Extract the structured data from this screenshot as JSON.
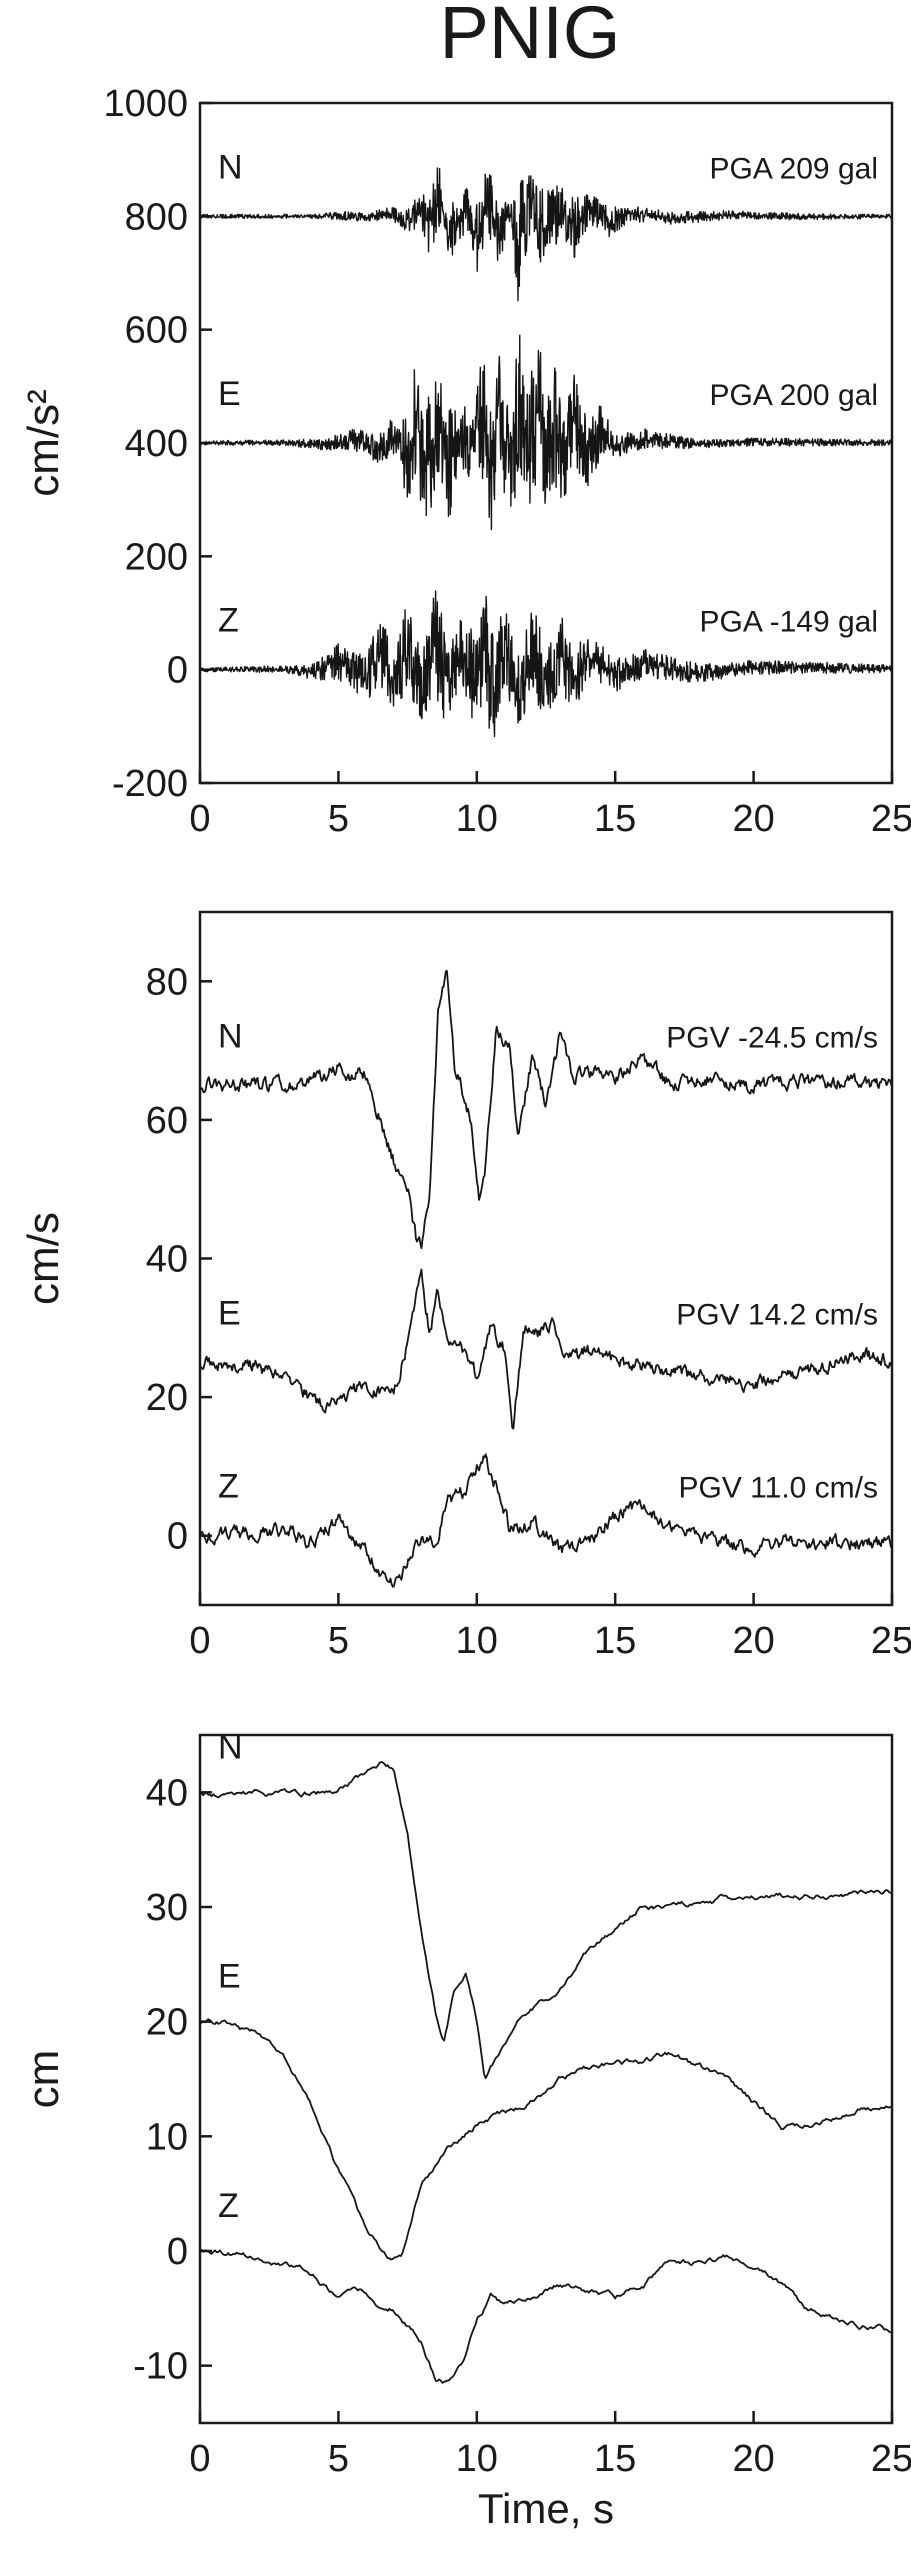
{
  "title": "PNIG",
  "chart_data": [
    {
      "type": "line",
      "ylabel": "cm/s²",
      "ylim": [
        -200,
        1000
      ],
      "yticks": [
        1000,
        800,
        600,
        400,
        200,
        0,
        -200
      ],
      "xlim": [
        0,
        25
      ],
      "xticks": [
        0,
        5,
        10,
        15,
        20,
        25
      ],
      "series": [
        {
          "name": "N",
          "annotation": "PGA 209 gal",
          "baseline": 800,
          "x": [
            0,
            4,
            5,
            6,
            6.8,
            7.5,
            8,
            8.3,
            8.6,
            8.8,
            9,
            9.3,
            9.7,
            10,
            10.4,
            10.8,
            11.2,
            11.5,
            12,
            12.5,
            13,
            13.5,
            14,
            14.8,
            15.5,
            17,
            19,
            22,
            25
          ],
          "y": [
            800,
            800,
            805,
            795,
            812,
            775,
            840,
            740,
            905,
            810,
            690,
            760,
            850,
            700,
            880,
            720,
            815,
            660,
            875,
            700,
            860,
            735,
            835,
            770,
            815,
            790,
            806,
            798,
            800
          ]
        },
        {
          "name": "E",
          "annotation": "PGA 200 gal",
          "baseline": 400,
          "x": [
            0,
            3,
            4.5,
            5.5,
            6.5,
            7,
            7.5,
            7.8,
            8.3,
            8.6,
            9,
            9.4,
            9.8,
            10.2,
            10.5,
            10.8,
            11.2,
            11.5,
            11.8,
            12.2,
            12.5,
            12.8,
            13.1,
            13.5,
            14,
            14.5,
            15,
            16,
            18,
            20,
            25
          ],
          "y": [
            400,
            402,
            392,
            420,
            370,
            440,
            310,
            545,
            230,
            520,
            270,
            500,
            340,
            555,
            240,
            545,
            300,
            600,
            220,
            590,
            270,
            560,
            300,
            520,
            330,
            460,
            380,
            420,
            395,
            405,
            402
          ]
        },
        {
          "name": "Z",
          "annotation": "PGA -149 gal",
          "baseline": 0,
          "x": [
            0,
            3,
            4,
            5,
            6,
            6.5,
            7,
            7.5,
            8,
            8.5,
            9,
            9.5,
            10,
            10.3,
            10.6,
            11,
            11.5,
            12,
            12.5,
            13,
            13.5,
            14,
            15,
            16,
            18,
            20,
            25
          ],
          "y": [
            0,
            3,
            -12,
            40,
            -45,
            90,
            -55,
            110,
            -80,
            130,
            -90,
            100,
            -110,
            125,
            -140,
            95,
            -90,
            110,
            -70,
            90,
            -60,
            60,
            -35,
            30,
            -18,
            12,
            5
          ]
        }
      ]
    },
    {
      "type": "line",
      "ylabel": "cm/s",
      "ylim": [
        -10,
        90
      ],
      "yticks": [
        80,
        60,
        40,
        20,
        0
      ],
      "xlim": [
        0,
        25
      ],
      "xticks": [
        0,
        5,
        10,
        15,
        20,
        25
      ],
      "series": [
        {
          "name": "N",
          "annotation": "PGV -24.5 cm/s",
          "baseline": 65,
          "x": [
            0,
            3,
            4,
            5,
            5.5,
            6,
            6.5,
            7,
            7.5,
            7.8,
            8,
            8.3,
            8.6,
            8.9,
            9.2,
            9.5,
            9.8,
            10.1,
            10.3,
            10.7,
            11.2,
            11.5,
            12,
            12.5,
            13,
            13.5,
            14,
            15,
            16,
            17,
            18,
            20,
            22,
            25
          ],
          "y": [
            65,
            65,
            65.5,
            67.5,
            66,
            67,
            60,
            54,
            50,
            43,
            42,
            50,
            75,
            82,
            68,
            64,
            60,
            48,
            52,
            73,
            70,
            58,
            69,
            62,
            72,
            66,
            67,
            66,
            69,
            65,
            66,
            65,
            65.5,
            65
          ]
        },
        {
          "name": "E",
          "annotation": "PGV 14.2 cm/s",
          "baseline": 25,
          "x": [
            0,
            2,
            3,
            4,
            4.5,
            5,
            5.5,
            6,
            7,
            7.5,
            8,
            8.3,
            8.6,
            9,
            9.5,
            10,
            10.5,
            11,
            11.3,
            11.7,
            12.2,
            12.8,
            13.3,
            14,
            15,
            16,
            18,
            20,
            22,
            24,
            25
          ],
          "y": [
            25,
            24.5,
            23,
            20,
            18.5,
            19,
            21.5,
            21,
            20,
            28,
            38,
            29,
            35,
            28,
            27,
            23,
            30,
            27,
            16,
            30,
            29,
            31,
            25,
            27,
            25,
            24.5,
            23,
            22,
            24,
            26,
            25
          ]
        },
        {
          "name": "Z",
          "annotation": "PGV 11.0 cm/s",
          "baseline": 0,
          "x": [
            0,
            2,
            3,
            4,
            5,
            5.5,
            6,
            6.5,
            7,
            7.5,
            8,
            8.5,
            9,
            9.5,
            10,
            10.3,
            10.7,
            11.2,
            12,
            13,
            14,
            15,
            15.5,
            16,
            17,
            18,
            19,
            20,
            21,
            22,
            23,
            24,
            25
          ],
          "y": [
            0,
            0.5,
            1,
            -1,
            2,
            0,
            -2,
            -5,
            -7,
            -4,
            0,
            -1,
            5,
            6,
            10,
            11,
            7,
            1,
            2,
            -2,
            -1,
            3,
            4,
            4,
            1,
            0,
            -1,
            -2,
            -1,
            -1,
            -1,
            -1,
            -1
          ]
        }
      ]
    },
    {
      "type": "line",
      "ylabel": "cm",
      "xlabel": "Time, s",
      "ylim": [
        -15,
        45
      ],
      "yticks": [
        40,
        30,
        20,
        10,
        0,
        -10
      ],
      "xlim": [
        0,
        25
      ],
      "xticks": [
        0,
        5,
        10,
        15,
        20,
        25
      ],
      "series": [
        {
          "name": "N",
          "baseline": 40,
          "x": [
            0,
            3,
            4.8,
            5.5,
            6.5,
            7,
            7.5,
            8,
            8.5,
            8.8,
            9.2,
            9.6,
            10,
            10.3,
            10.8,
            11.5,
            12,
            13,
            14,
            15,
            16,
            17,
            18,
            20,
            22,
            25
          ],
          "y": [
            40,
            40,
            40,
            41,
            42.5,
            42,
            36,
            28,
            21,
            18.5,
            23,
            24,
            20,
            15,
            17,
            20,
            21,
            23,
            26,
            28,
            30,
            30,
            30.5,
            31,
            31,
            31.2
          ]
        },
        {
          "name": "E",
          "baseline": 20,
          "x": [
            0,
            1,
            2,
            3,
            4,
            5,
            6,
            6.8,
            7.3,
            7.6,
            8,
            9,
            10,
            11,
            12,
            13,
            14,
            15,
            16,
            17,
            18,
            19,
            20,
            21,
            22,
            23,
            24,
            25
          ],
          "y": [
            20,
            19.8,
            19,
            17,
            13,
            7,
            2,
            -0.5,
            -0.5,
            2,
            6,
            9,
            11,
            12,
            13,
            15,
            16,
            16.5,
            16.5,
            17.2,
            16,
            15,
            13,
            11,
            11,
            11.5,
            12.5,
            12.5
          ]
        },
        {
          "name": "Z",
          "baseline": 0,
          "x": [
            0,
            2,
            3,
            4,
            5,
            5.5,
            6,
            6.5,
            7,
            8,
            8.5,
            9,
            9.5,
            10,
            10.5,
            11,
            12,
            13,
            14,
            15,
            16,
            17,
            18,
            19,
            20,
            21,
            22,
            23,
            24,
            25
          ],
          "y": [
            0,
            -0.5,
            -1,
            -2,
            -4,
            -3.8,
            -3.5,
            -4.5,
            -5,
            -8,
            -11,
            -11.5,
            -10,
            -6,
            -4,
            -5,
            -4,
            -3,
            -3.5,
            -4,
            -3,
            -1,
            -1,
            -0.5,
            -1,
            -3,
            -5,
            -6,
            -6.5,
            -7
          ]
        }
      ]
    }
  ]
}
